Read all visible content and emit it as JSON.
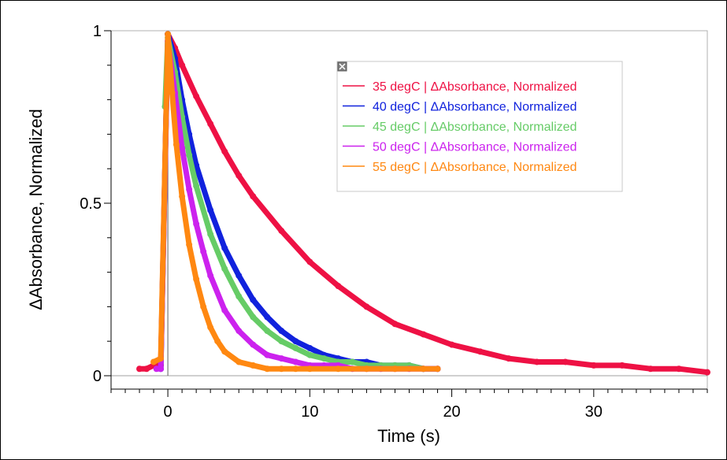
{
  "chart_data": {
    "type": "scatter",
    "title": "",
    "xlabel": "Time (s)",
    "ylabel": "ΔAbsorbance, Normalized",
    "xlim": [
      -4,
      38
    ],
    "ylim": [
      0,
      1
    ],
    "x_ticks": [
      "0",
      "10",
      "20",
      "30"
    ],
    "y_ticks": [
      "0",
      "0.5",
      "1"
    ],
    "grid": false,
    "legend_position": "top-right",
    "series": [
      {
        "name": "35 degC | ΔAbsorbance, Normalized",
        "color": "#ee1144",
        "x": [
          -2.0,
          -1.5,
          -1.0,
          -0.5,
          0,
          0.5,
          1,
          2,
          3,
          4,
          5,
          6,
          8,
          10,
          12,
          14,
          16,
          18,
          20,
          22,
          24,
          26,
          28,
          30,
          32,
          34,
          36,
          38
        ],
        "y": [
          0.02,
          0.02,
          0.03,
          0.03,
          0.99,
          0.95,
          0.9,
          0.81,
          0.73,
          0.65,
          0.58,
          0.52,
          0.42,
          0.33,
          0.26,
          0.2,
          0.15,
          0.12,
          0.09,
          0.07,
          0.05,
          0.04,
          0.04,
          0.03,
          0.03,
          0.02,
          0.02,
          0.01
        ]
      },
      {
        "name": "40 degC | ΔAbsorbance, Normalized",
        "color": "#1122dd",
        "x": [
          -0.5,
          0,
          0.5,
          1,
          1.5,
          2,
          3,
          4,
          5,
          6,
          7,
          8,
          9,
          10,
          11,
          12,
          13,
          14,
          15,
          16,
          17,
          18,
          19
        ],
        "y": [
          0.02,
          0.99,
          0.92,
          0.8,
          0.7,
          0.61,
          0.48,
          0.37,
          0.29,
          0.22,
          0.17,
          0.13,
          0.1,
          0.08,
          0.06,
          0.05,
          0.04,
          0.04,
          0.03,
          0.03,
          0.03,
          0.02,
          0.02
        ]
      },
      {
        "name": "45 degC | ΔAbsorbance, Normalized",
        "color": "#66cc66",
        "x": [
          -0.2,
          0,
          0.5,
          1,
          1.5,
          2,
          3,
          4,
          5,
          6,
          7,
          8,
          9,
          10,
          11,
          12,
          13,
          14,
          15,
          16,
          17,
          18
        ],
        "y": [
          0.78,
          0.98,
          0.88,
          0.75,
          0.64,
          0.55,
          0.41,
          0.31,
          0.23,
          0.17,
          0.13,
          0.1,
          0.08,
          0.06,
          0.05,
          0.04,
          0.04,
          0.03,
          0.03,
          0.03,
          0.03,
          0.02
        ]
      },
      {
        "name": "50 degC | ΔAbsorbance, Normalized",
        "color": "#cc22ee",
        "x": [
          -0.8,
          -0.5,
          0,
          0.5,
          1,
          1.5,
          2,
          2.5,
          3,
          4,
          5,
          6,
          7,
          8,
          9,
          10,
          11,
          12,
          13,
          14,
          15,
          16,
          17,
          18,
          19
        ],
        "y": [
          0.02,
          0.02,
          0.97,
          0.82,
          0.66,
          0.54,
          0.44,
          0.36,
          0.29,
          0.19,
          0.13,
          0.09,
          0.06,
          0.05,
          0.04,
          0.03,
          0.03,
          0.03,
          0.02,
          0.02,
          0.02,
          0.02,
          0.02,
          0.02,
          0.02
        ]
      },
      {
        "name": "55 degC | ΔAbsorbance, Normalized",
        "color": "#ff8811",
        "x": [
          -1.0,
          -0.5,
          0,
          0.3,
          0.6,
          1,
          1.5,
          2,
          2.5,
          3,
          3.5,
          4,
          5,
          6,
          7,
          8,
          9,
          10,
          12,
          14,
          16,
          18,
          19
        ],
        "y": [
          0.04,
          0.05,
          0.99,
          0.82,
          0.67,
          0.52,
          0.38,
          0.28,
          0.2,
          0.14,
          0.1,
          0.07,
          0.04,
          0.03,
          0.02,
          0.02,
          0.02,
          0.02,
          0.02,
          0.02,
          0.02,
          0.02,
          0.02
        ]
      }
    ]
  }
}
